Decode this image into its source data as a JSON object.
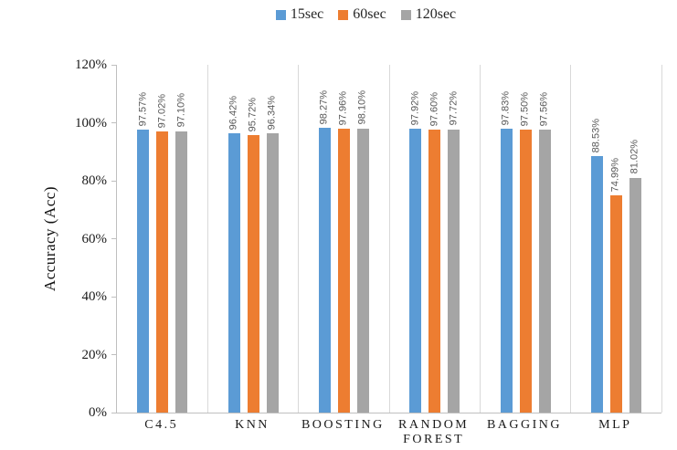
{
  "chart_data": {
    "type": "bar",
    "title": "",
    "xlabel": "",
    "ylabel": "Accuracy (Acc)",
    "ylim": [
      0,
      120
    ],
    "ytick_step": 20,
    "ytick_labels": [
      "0%",
      "20%",
      "40%",
      "60%",
      "80%",
      "100%",
      "120%"
    ],
    "grid": "vertical category separators only",
    "legend_position": "top-center",
    "categories": [
      "C4.5",
      "KNN",
      "BOOSTING",
      "RANDOM FOREST",
      "BAGGING",
      "MLP"
    ],
    "series": [
      {
        "name": "15sec",
        "color": "#5B9BD5",
        "values": [
          97.57,
          96.42,
          98.27,
          97.92,
          97.83,
          88.53
        ],
        "labels": [
          "97.57%",
          "96.42%",
          "98.27%",
          "97.92%",
          "97.83%",
          "88.53%"
        ]
      },
      {
        "name": "60sec",
        "color": "#ED7D31",
        "values": [
          97.02,
          95.72,
          97.96,
          97.6,
          97.5,
          74.99
        ],
        "labels": [
          "97.02%",
          "95.72%",
          "97.96%",
          "97.60%",
          "97.50%",
          "74.99%"
        ]
      },
      {
        "name": "120sec",
        "color": "#A5A5A5",
        "values": [
          97.1,
          96.34,
          98.1,
          97.72,
          97.56,
          81.02
        ],
        "labels": [
          "97.10%",
          "96.34%",
          "98.10%",
          "97.72%",
          "97.56%",
          "81.02%"
        ]
      }
    ]
  },
  "style_colors": {
    "axis_line": "#BFBFBF",
    "gridline": "#D9D9D9",
    "bar_label_text": "#595959",
    "tick_label_text": "#1A1A1A",
    "legend_text": "#262626"
  }
}
